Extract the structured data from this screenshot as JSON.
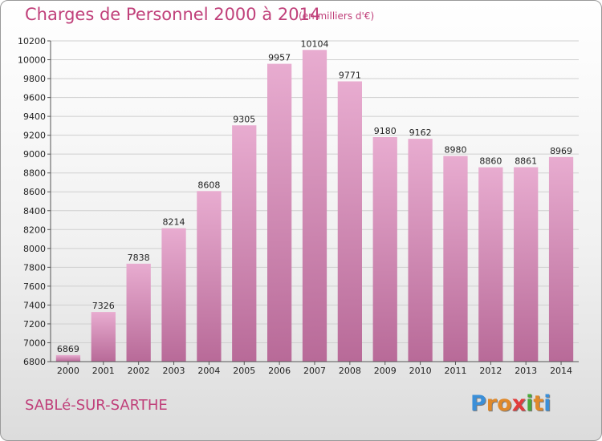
{
  "header": {
    "title": "Charges de Personnel 2000 à 2014",
    "subtitle": "(en milliers d'€)"
  },
  "footer": {
    "commune": "SABLé-SUR-SARTHE",
    "logo_letters": [
      "P",
      "r",
      "o",
      "x",
      "i",
      "t",
      "i"
    ],
    "logo_colors": [
      "#3b8fd8",
      "#e0892a",
      "#e0892a",
      "#e23c3c",
      "#4aa83a",
      "#e0892a",
      "#3b8fd8"
    ]
  },
  "chart_data": {
    "type": "bar",
    "categories": [
      "2000",
      "2001",
      "2002",
      "2003",
      "2004",
      "2005",
      "2006",
      "2007",
      "2008",
      "2009",
      "2010",
      "2011",
      "2012",
      "2013",
      "2014"
    ],
    "values": [
      6869,
      7326,
      7838,
      8214,
      8608,
      9305,
      9957,
      10104,
      9771,
      9180,
      9162,
      8980,
      8860,
      8861,
      8969
    ],
    "value_labels": [
      "6869",
      "7326",
      "7838",
      "8214",
      "8608",
      "9305",
      "9957",
      "10104",
      "9771",
      "9180",
      "9162",
      "8980",
      "8860",
      "8861",
      "8969"
    ],
    "ylim": [
      6800,
      10200
    ],
    "yticks": [
      "6800",
      "7000",
      "7200",
      "7400",
      "7600",
      "7800",
      "8000",
      "8200",
      "8400",
      "8600",
      "8800",
      "9000",
      "9200",
      "9400",
      "9600",
      "9800",
      "10000",
      "10200"
    ],
    "grid": true,
    "bar_color_top": "#e8acd0",
    "bar_color_bottom": "#b86a98"
  }
}
